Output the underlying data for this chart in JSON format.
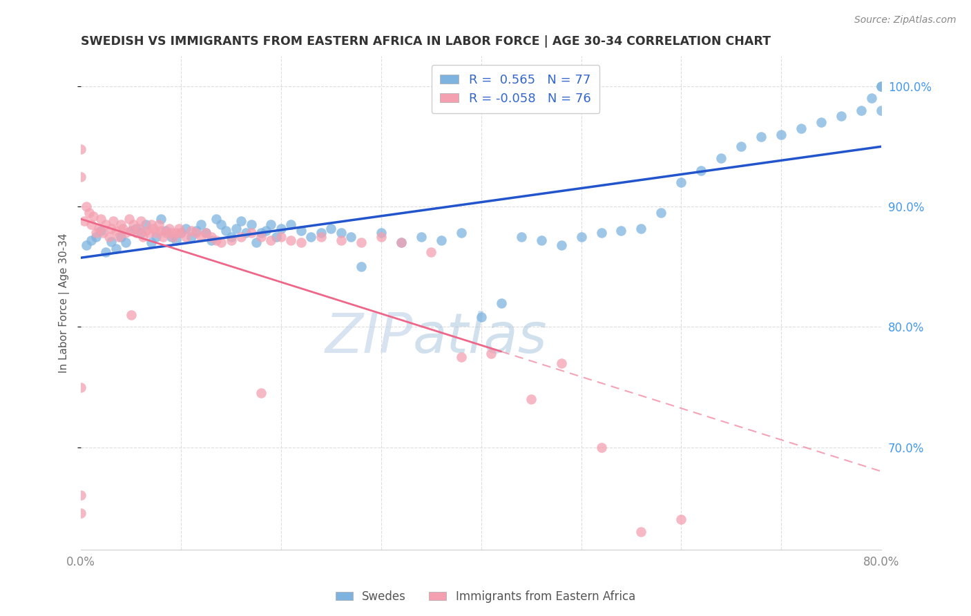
{
  "title": "SWEDISH VS IMMIGRANTS FROM EASTERN AFRICA IN LABOR FORCE | AGE 30-34 CORRELATION CHART",
  "source": "Source: ZipAtlas.com",
  "ylabel": "In Labor Force | Age 30-34",
  "yticks_labels": [
    "100.0%",
    "90.0%",
    "80.0%",
    "70.0%"
  ],
  "ytick_vals": [
    1.0,
    0.9,
    0.8,
    0.7
  ],
  "xmin": 0.0,
  "xmax": 0.8,
  "ymin": 0.615,
  "ymax": 1.025,
  "blue_color": "#7EB3E0",
  "pink_color": "#F4A0B0",
  "blue_line_color": "#2255CC",
  "pink_line_color": "#EE6688",
  "swedes_label": "Swedes",
  "immigrants_label": "Immigrants from Eastern Africa",
  "watermark_zip": "ZIP",
  "watermark_atlas": "atlas",
  "blue_scatter_x": [
    0.005,
    0.01,
    0.015,
    0.02,
    0.025,
    0.03,
    0.035,
    0.04,
    0.045,
    0.05,
    0.055,
    0.06,
    0.065,
    0.07,
    0.075,
    0.08,
    0.085,
    0.09,
    0.095,
    0.1,
    0.105,
    0.11,
    0.115,
    0.12,
    0.125,
    0.13,
    0.135,
    0.14,
    0.145,
    0.15,
    0.155,
    0.16,
    0.165,
    0.17,
    0.175,
    0.18,
    0.185,
    0.19,
    0.195,
    0.2,
    0.21,
    0.22,
    0.23,
    0.24,
    0.25,
    0.26,
    0.27,
    0.28,
    0.3,
    0.32,
    0.34,
    0.36,
    0.38,
    0.4,
    0.42,
    0.44,
    0.46,
    0.48,
    0.5,
    0.52,
    0.54,
    0.56,
    0.58,
    0.6,
    0.62,
    0.64,
    0.66,
    0.68,
    0.7,
    0.72,
    0.74,
    0.76,
    0.78,
    0.79,
    0.8,
    0.8,
    0.8
  ],
  "blue_scatter_y": [
    0.868,
    0.872,
    0.875,
    0.88,
    0.862,
    0.871,
    0.865,
    0.875,
    0.87,
    0.88,
    0.882,
    0.878,
    0.885,
    0.87,
    0.875,
    0.89,
    0.88,
    0.875,
    0.872,
    0.878,
    0.882,
    0.875,
    0.88,
    0.885,
    0.878,
    0.872,
    0.89,
    0.885,
    0.88,
    0.875,
    0.882,
    0.888,
    0.878,
    0.885,
    0.87,
    0.878,
    0.88,
    0.885,
    0.875,
    0.882,
    0.885,
    0.88,
    0.875,
    0.878,
    0.882,
    0.878,
    0.875,
    0.85,
    0.878,
    0.87,
    0.875,
    0.872,
    0.878,
    0.808,
    0.82,
    0.875,
    0.872,
    0.868,
    0.875,
    0.878,
    0.88,
    0.882,
    0.895,
    0.92,
    0.93,
    0.94,
    0.95,
    0.958,
    0.96,
    0.965,
    0.97,
    0.975,
    0.98,
    0.99,
    1.0,
    1.0,
    0.98
  ],
  "pink_scatter_x": [
    0.003,
    0.005,
    0.008,
    0.01,
    0.012,
    0.015,
    0.018,
    0.02,
    0.022,
    0.025,
    0.028,
    0.03,
    0.032,
    0.035,
    0.038,
    0.04,
    0.042,
    0.045,
    0.048,
    0.05,
    0.052,
    0.055,
    0.058,
    0.06,
    0.062,
    0.065,
    0.068,
    0.07,
    0.072,
    0.075,
    0.078,
    0.08,
    0.082,
    0.085,
    0.088,
    0.09,
    0.092,
    0.095,
    0.098,
    0.1,
    0.105,
    0.11,
    0.115,
    0.12,
    0.125,
    0.13,
    0.135,
    0.14,
    0.15,
    0.16,
    0.17,
    0.18,
    0.19,
    0.2,
    0.21,
    0.22,
    0.24,
    0.26,
    0.28,
    0.3,
    0.32,
    0.35,
    0.38,
    0.41,
    0.45,
    0.48,
    0.52,
    0.56,
    0.6,
    0.0,
    0.0,
    0.0,
    0.0,
    0.0,
    0.05,
    0.18
  ],
  "pink_scatter_y": [
    0.888,
    0.9,
    0.895,
    0.885,
    0.892,
    0.878,
    0.882,
    0.89,
    0.878,
    0.885,
    0.875,
    0.882,
    0.888,
    0.88,
    0.875,
    0.885,
    0.882,
    0.878,
    0.89,
    0.88,
    0.885,
    0.878,
    0.882,
    0.888,
    0.875,
    0.88,
    0.878,
    0.885,
    0.882,
    0.878,
    0.885,
    0.88,
    0.875,
    0.878,
    0.882,
    0.878,
    0.875,
    0.878,
    0.882,
    0.878,
    0.875,
    0.88,
    0.878,
    0.875,
    0.878,
    0.875,
    0.872,
    0.87,
    0.872,
    0.875,
    0.878,
    0.875,
    0.872,
    0.875,
    0.872,
    0.87,
    0.875,
    0.872,
    0.87,
    0.875,
    0.87,
    0.862,
    0.775,
    0.778,
    0.74,
    0.77,
    0.7,
    0.63,
    0.64,
    0.925,
    0.948,
    0.75,
    0.645,
    0.66,
    0.81,
    0.745
  ]
}
